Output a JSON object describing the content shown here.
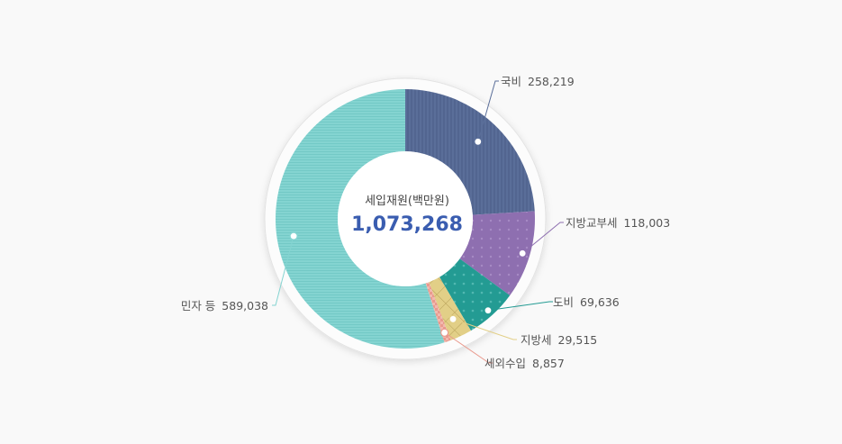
{
  "chart_data": {
    "type": "pie",
    "title": "세입재원(백만원)",
    "total": "1,073,268",
    "slices": [
      {
        "name": "국비",
        "value": 258219,
        "label": "258,219",
        "color": "#5a6e99",
        "pattern": "vlines"
      },
      {
        "name": "지방교부세",
        "value": 118003,
        "label": "118,003",
        "color": "#8e6fb0",
        "pattern": "dots"
      },
      {
        "name": "도비",
        "value": 69636,
        "label": "69,636",
        "color": "#239b93",
        "pattern": "dots"
      },
      {
        "name": "지방세",
        "value": 29515,
        "label": "29,515",
        "color": "#e2cf87",
        "pattern": "grid"
      },
      {
        "name": "세외수입",
        "value": 8857,
        "label": "8,857",
        "color": "#e99a8e",
        "pattern": "checker"
      },
      {
        "name": "민자 등",
        "value": 589038,
        "label": "589,038",
        "color": "#84d4d1",
        "pattern": "hlines"
      }
    ]
  }
}
